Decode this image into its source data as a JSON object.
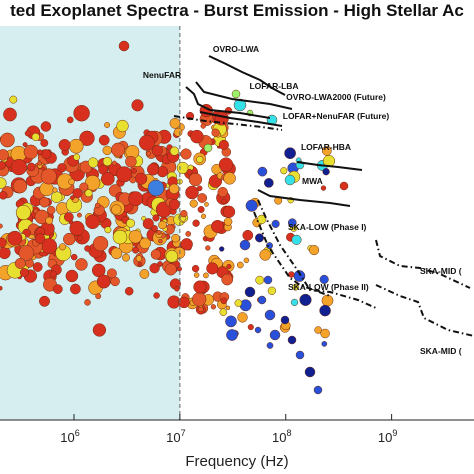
{
  "chart_data": {
    "type": "scatter",
    "title": "ted Exoplanet Spectra - Burst Emission - High Stellar Ac",
    "xlabel": "Frequency (Hz)",
    "x_scale": "log",
    "x_ticks": [
      {
        "value": 1000000,
        "base": "10",
        "exp": "6"
      },
      {
        "value": 10000000,
        "base": "10",
        "exp": "7"
      },
      {
        "value": 100000000,
        "base": "10",
        "exp": "8"
      },
      {
        "value": 1000000000,
        "base": "10",
        "exp": "9"
      }
    ],
    "xlim": [
      200000,
      6000000000
    ],
    "shaded_region": {
      "from": 200000,
      "to": 10000000,
      "color": "#d6eef0"
    },
    "divider_line_at": 10000000,
    "colors": {
      "red": "#d7301f",
      "orange": "#f4a32a",
      "yellow": "#e8e030",
      "cyan": "#35e0e8",
      "lightgreen": "#9cf06a",
      "blue": "#2850d8",
      "navy": "#102090",
      "border": "#6b2a10"
    },
    "instrument_curves": [
      {
        "name": "OVRO-LWA",
        "style": "solid"
      },
      {
        "name": "LOFAR-LBA",
        "style": "solid"
      },
      {
        "name": "NenuFAR",
        "style": "solid"
      },
      {
        "name": "OVRO-LWA2000 (Future)",
        "style": "solid"
      },
      {
        "name": "LOFAR+NenuFAR (Future)",
        "style": "dashed"
      },
      {
        "name": "LOFAR-HBA",
        "style": "solid"
      },
      {
        "name": "MWA",
        "style": "solid"
      },
      {
        "name": "SKA-LOW (Phase I)",
        "style": "dashed"
      },
      {
        "name": "SKA-LOW (Phase II)",
        "style": "dashed"
      },
      {
        "name": "SKA-MID (",
        "style": "dashed"
      },
      {
        "name": "SKA-MID (",
        "style": "dashed"
      }
    ]
  }
}
